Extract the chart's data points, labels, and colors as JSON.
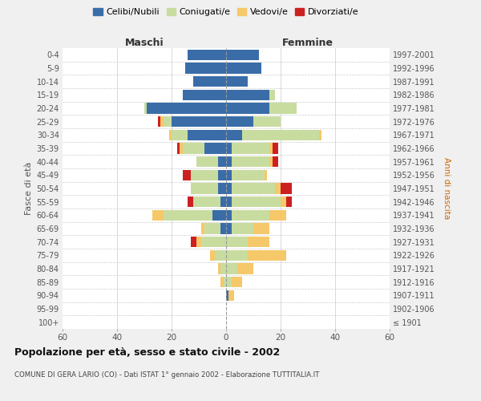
{
  "age_groups": [
    "100+",
    "95-99",
    "90-94",
    "85-89",
    "80-84",
    "75-79",
    "70-74",
    "65-69",
    "60-64",
    "55-59",
    "50-54",
    "45-49",
    "40-44",
    "35-39",
    "30-34",
    "25-29",
    "20-24",
    "15-19",
    "10-14",
    "5-9",
    "0-4"
  ],
  "birth_years": [
    "≤ 1901",
    "1902-1906",
    "1907-1911",
    "1912-1916",
    "1917-1921",
    "1922-1926",
    "1927-1931",
    "1932-1936",
    "1937-1941",
    "1942-1946",
    "1947-1951",
    "1952-1956",
    "1957-1961",
    "1962-1966",
    "1967-1971",
    "1972-1976",
    "1977-1981",
    "1982-1986",
    "1987-1991",
    "1992-1996",
    "1997-2001"
  ],
  "males": {
    "celibi": [
      0,
      0,
      0,
      0,
      0,
      0,
      0,
      2,
      5,
      2,
      3,
      3,
      3,
      8,
      14,
      20,
      29,
      16,
      12,
      15,
      14
    ],
    "coniugati": [
      0,
      0,
      0,
      1,
      2,
      4,
      9,
      6,
      18,
      10,
      10,
      10,
      8,
      8,
      6,
      3,
      1,
      0,
      0,
      0,
      0
    ],
    "vedovi": [
      0,
      0,
      0,
      1,
      1,
      2,
      2,
      1,
      4,
      0,
      0,
      0,
      0,
      1,
      1,
      1,
      0,
      0,
      0,
      0,
      0
    ],
    "divorziati": [
      0,
      0,
      0,
      0,
      0,
      0,
      2,
      0,
      0,
      2,
      0,
      3,
      0,
      1,
      0,
      1,
      0,
      0,
      0,
      0,
      0
    ]
  },
  "females": {
    "nubili": [
      0,
      0,
      1,
      0,
      0,
      0,
      0,
      2,
      2,
      2,
      2,
      2,
      2,
      2,
      6,
      10,
      16,
      16,
      8,
      13,
      12
    ],
    "coniugate": [
      0,
      0,
      0,
      2,
      4,
      8,
      8,
      8,
      14,
      18,
      16,
      12,
      14,
      14,
      28,
      10,
      10,
      2,
      0,
      0,
      0
    ],
    "vedove": [
      0,
      0,
      2,
      4,
      6,
      14,
      8,
      6,
      6,
      2,
      2,
      1,
      1,
      1,
      1,
      0,
      0,
      0,
      0,
      0,
      0
    ],
    "divorziate": [
      0,
      0,
      0,
      0,
      0,
      0,
      0,
      0,
      0,
      2,
      4,
      0,
      2,
      2,
      0,
      0,
      0,
      0,
      0,
      0,
      0
    ]
  },
  "colors": {
    "celibi_nubili": "#3a6da8",
    "coniugati_e": "#c8dca0",
    "vedovi_e": "#f5c86a",
    "divorziati_e": "#cc2020"
  },
  "xlim": 60,
  "title": "Popolazione per età, sesso e stato civile - 2002",
  "subtitle": "COMUNE DI GERA LARIO (CO) - Dati ISTAT 1° gennaio 2002 - Elaborazione TUTTITALIA.IT",
  "ylabel_left": "Fasce di età",
  "ylabel_right": "Anni di nascita",
  "xlabel_left": "Maschi",
  "xlabel_right": "Femmine",
  "legend_labels": [
    "Celibi/Nubili",
    "Coniugati/e",
    "Vedovi/e",
    "Divorziati/e"
  ],
  "bg_color": "#f0f0f0",
  "plot_bg_color": "#ffffff"
}
